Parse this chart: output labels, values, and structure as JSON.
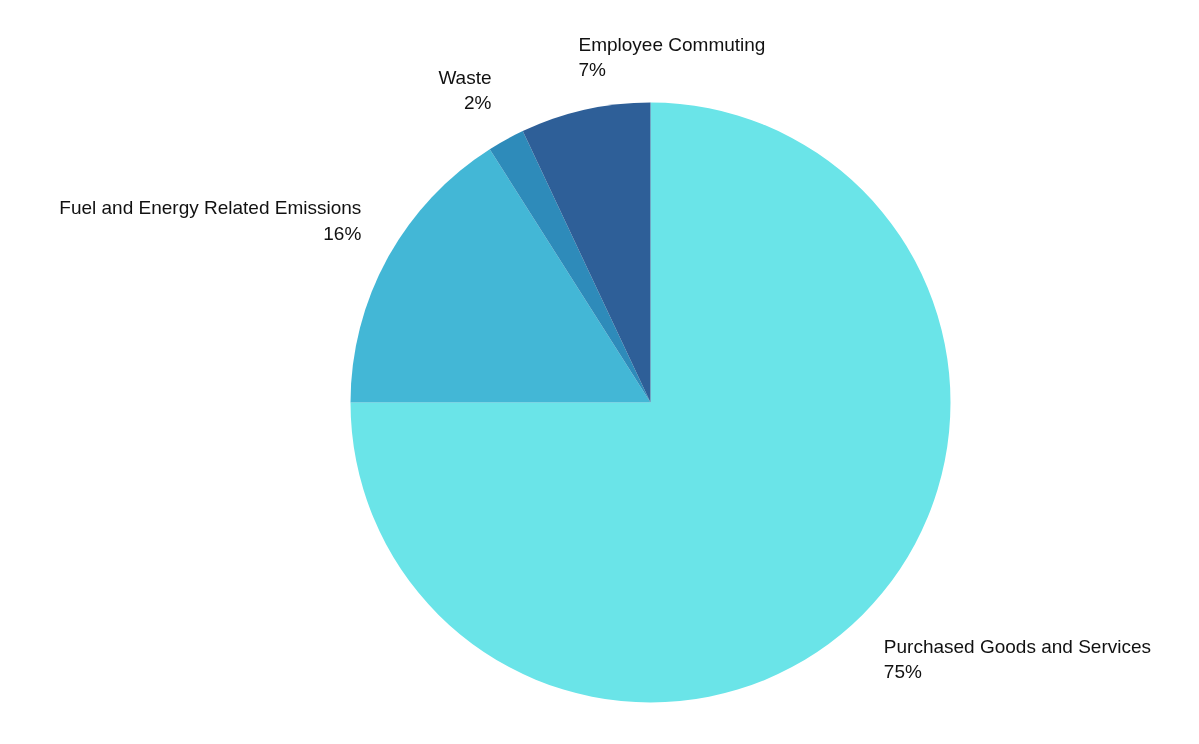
{
  "chart_data": {
    "type": "pie",
    "categories": [
      "Purchased Goods and Services",
      "Fuel and Energy Related Emissions",
      "Waste",
      "Employee Commuting"
    ],
    "values": [
      75,
      16,
      2,
      7
    ],
    "value_labels": [
      "75%",
      "16%",
      "2%",
      "7%"
    ],
    "colors": [
      "#6ae4e8",
      "#43b7d6",
      "#2e8bba",
      "#2e5f98"
    ],
    "legend": false
  }
}
